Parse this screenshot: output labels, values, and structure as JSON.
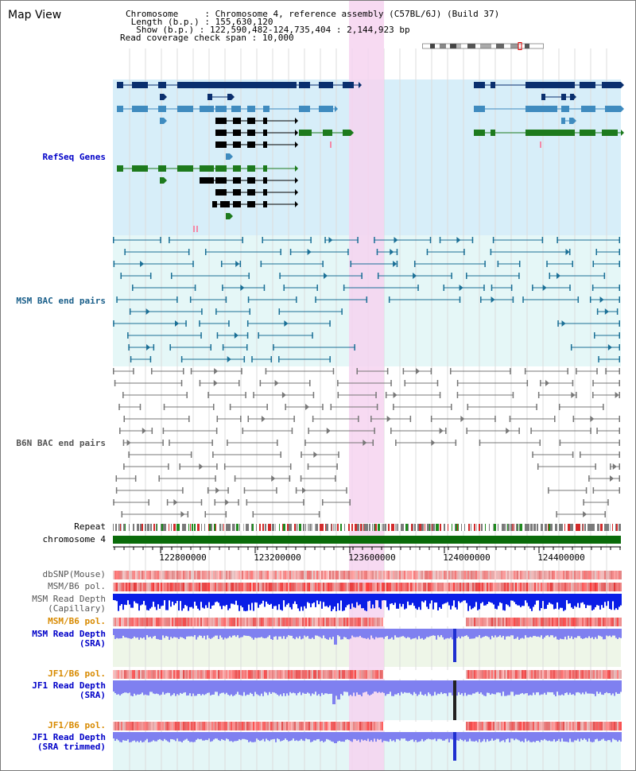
{
  "title": "Map View",
  "info": {
    "chromosome_label": "Chromosome",
    "chromosome_value": "Chromosome 4, reference assembly (C57BL/6J) (Build 37)",
    "length_label": "Length (b.p.)",
    "length_value": "155,630,120",
    "show_label": "Show (b.p.)",
    "show_value": "122,590,482-124,735,404 : 2,144,923 bp",
    "coverage_label": "Read coverage check span",
    "coverage_value": "10,000"
  },
  "tracks": {
    "refseq": "RefSeq Genes",
    "msm_bac": "MSM BAC end pairs",
    "b6n_bac": "B6N BAC end pairs",
    "repeat": "Repeat",
    "chromosome": "chromosome 4",
    "dbsnp": "dbSNP(Mouse)",
    "msm_b6_pol_1": "MSM/B6 pol.",
    "msm_depth_cap_1": "MSM Read Depth",
    "msm_depth_cap_2": "(Capillary)",
    "msm_b6_pol_2": "MSM/B6 pol.",
    "msm_depth_sra_1": "MSM Read Depth",
    "msm_depth_sra_2": "(SRA)",
    "jf1_b6_pol_1": "JF1/B6 pol.",
    "jf1_depth_sra_1": "JF1 Read Depth",
    "jf1_depth_sra_2": "(SRA)",
    "jf1_b6_pol_2": "JF1/B6 pol.",
    "jf1_depth_trim_1": "JF1 Read Depth",
    "jf1_depth_trim_2": "(SRA trimmed)"
  },
  "axis": {
    "ticks": [
      "122800000",
      "123200000",
      "123600000",
      "124000000",
      "124400000"
    ]
  },
  "colors": {
    "highlight": "#f6d3f0",
    "refseq_bg": "#d7eef9",
    "bac_bg": "#e5f7f7",
    "refseq_dark": "#0a2f6e",
    "refseq_mid": "#3f8bbf",
    "refseq_green": "#1d7a1d",
    "msm_bac": "#1a6f96",
    "b6n_bac": "#777777",
    "chromosome_bar": "#0a6b0a",
    "depth_cap": "#0a1ee6",
    "depth_sra": "#7f80f0",
    "pol": "#e63c3c"
  }
}
